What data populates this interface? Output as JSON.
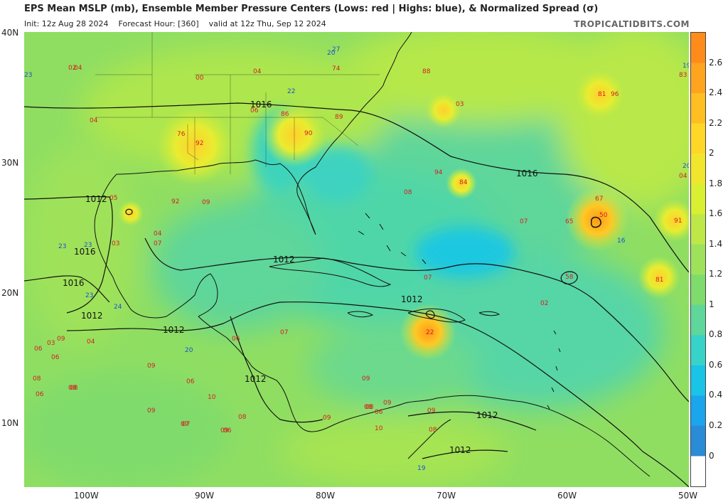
{
  "header": {
    "title": "EPS Mean MSLP (mb), Ensemble Member Pressure Centers (Lows: red | Highs: blue), & Normalized Spread (σ)",
    "init": "Init: 12z Aug 28 2024",
    "forecast_hour": "Forecast Hour: [360]",
    "valid": "valid at 12z Thu, Sep 12 2024",
    "brand": "TROPICALTIDBITS.COM"
  },
  "axes": {
    "lat_labels": [
      "40N",
      "30N",
      "20N",
      "10N"
    ],
    "lon_labels": [
      "100W",
      "90W",
      "80W",
      "70W",
      "60W",
      "50W"
    ]
  },
  "colorbar": {
    "labels": [
      "2.6",
      "2.4",
      "2.2",
      "2",
      "1.8",
      "1.6",
      "1.4",
      "1.2",
      "1",
      "0.8",
      "0.6",
      "0.4",
      "0.2",
      "0"
    ],
    "colors": [
      "#ff8c1a",
      "#ffa41f",
      "#ffbe22",
      "#ffd728",
      "#f2e52d",
      "#d9ef32",
      "#bde848",
      "#9ee25c",
      "#7fdb6c",
      "#5fd69a",
      "#38d3c8",
      "#19c4e6",
      "#1aa5ec",
      "#2a8bd6",
      "#ffffff"
    ]
  },
  "isobars": [
    "1016",
    "1012",
    "1016",
    "1012",
    "1012",
    "1016",
    "1012",
    "1012",
    "1012",
    "1012",
    "1012",
    "1016"
  ],
  "lows": [
    "02",
    "04",
    "04",
    "00",
    "74",
    "88",
    "89",
    "76",
    "92",
    "06",
    "86",
    "90",
    "03",
    "04",
    "92",
    "09",
    "08",
    "94",
    "84",
    "07",
    "67",
    "50",
    "65",
    "91",
    "83",
    "96",
    "81",
    "04",
    "58",
    "81",
    "02",
    "22",
    "07",
    "09",
    "06",
    "07",
    "05",
    "03",
    "09",
    "04",
    "06",
    "09",
    "06",
    "08",
    "06",
    "08",
    "09",
    "10",
    "09",
    "07",
    "08",
    "08",
    "09",
    "08",
    "06",
    "06",
    "09",
    "10",
    "09",
    "08",
    "03",
    "04",
    "07",
    "06",
    "08",
    "07"
  ],
  "highs": [
    "23",
    "27",
    "20",
    "22",
    "16",
    "20",
    "19",
    "23",
    "23",
    "23",
    "24",
    "20",
    "19"
  ]
}
